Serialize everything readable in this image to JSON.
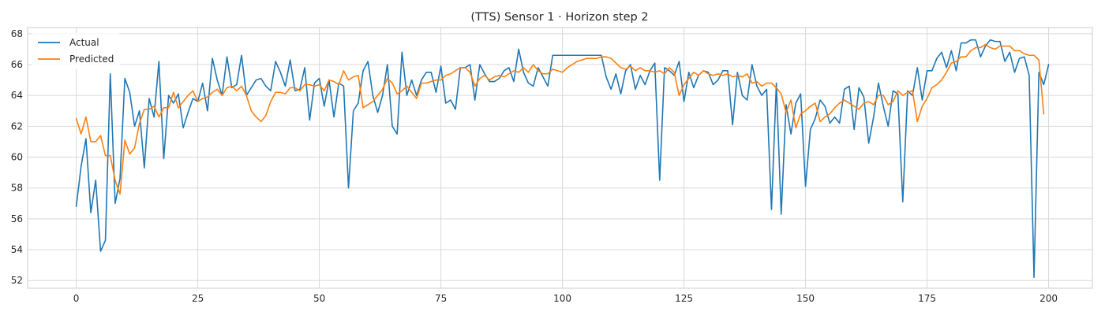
{
  "chart_data": {
    "type": "line",
    "title": "(TTS) Sensor 1 · Horizon step 2",
    "xlabel": "",
    "ylabel": "",
    "xlim": [
      -10,
      209
    ],
    "ylim": [
      51.5,
      68.4
    ],
    "xticks": [
      0,
      25,
      50,
      75,
      100,
      125,
      150,
      175,
      200
    ],
    "yticks": [
      52,
      54,
      56,
      58,
      60,
      62,
      64,
      66,
      68
    ],
    "grid": true,
    "legend": "top-left",
    "series": [
      {
        "name": "Actual",
        "color": "#1f77b4",
        "values": [
          56.8,
          59.4,
          61.2,
          56.4,
          58.5,
          53.9,
          54.6,
          65.4,
          57.0,
          58.6,
          65.1,
          64.2,
          62.0,
          63.0,
          59.3,
          63.8,
          62.6,
          66.2,
          59.9,
          64.0,
          63.5,
          64.1,
          61.9,
          62.9,
          63.8,
          63.6,
          64.8,
          63.0,
          66.4,
          65.0,
          64.0,
          66.5,
          64.5,
          64.7,
          66.6,
          64.0,
          64.5,
          65.0,
          65.1,
          64.6,
          64.3,
          66.2,
          65.5,
          64.6,
          66.3,
          64.3,
          64.4,
          65.8,
          62.4,
          64.8,
          65.1,
          63.3,
          65.0,
          62.6,
          64.8,
          64.6,
          58.0,
          63.0,
          63.5,
          65.6,
          66.2,
          64.0,
          62.9,
          64.0,
          66.0,
          62.0,
          61.5,
          66.8,
          64.0,
          65.0,
          64.0,
          65.0,
          65.5,
          65.5,
          64.2,
          65.9,
          63.5,
          63.7,
          63.1,
          65.8,
          65.8,
          66.0,
          63.7,
          66.0,
          65.4,
          64.9,
          64.9,
          65.1,
          65.6,
          65.8,
          64.9,
          67.0,
          65.5,
          64.8,
          64.6,
          65.8,
          65.2,
          64.6,
          66.6,
          66.6,
          66.6,
          66.6,
          66.6,
          66.6,
          66.6,
          66.6,
          66.6,
          66.6,
          66.6,
          65.2,
          64.4,
          65.4,
          64.1,
          65.6,
          66.0,
          64.4,
          65.3,
          64.7,
          65.6,
          66.1,
          58.5,
          65.8,
          65.6,
          65.3,
          66.2,
          63.6,
          65.5,
          64.5,
          65.3,
          65.6,
          65.5,
          64.7,
          65.0,
          65.6,
          65.6,
          62.1,
          65.5,
          64.0,
          63.7,
          66.0,
          64.6,
          64.0,
          64.4,
          56.6,
          64.8,
          56.3,
          63.4,
          61.5,
          63.5,
          64.1,
          58.1,
          61.8,
          62.5,
          63.7,
          63.3,
          62.2,
          62.6,
          62.2,
          64.4,
          64.6,
          61.8,
          64.5,
          63.9,
          60.9,
          62.6,
          64.8,
          63.3,
          62.0,
          64.3,
          64.1,
          57.1,
          64.3,
          64.0,
          65.8,
          63.7,
          65.6,
          65.6,
          66.4,
          66.8,
          65.8,
          66.9,
          65.6,
          67.4,
          67.4,
          67.6,
          67.6,
          66.5,
          67.2,
          67.6,
          67.5,
          67.5,
          66.2,
          66.8,
          65.5,
          66.4,
          66.5,
          65.3,
          52.2,
          65.5,
          64.7,
          66.0
        ]
      },
      {
        "name": "Predicted",
        "color": "#ff7f0e",
        "values": [
          62.5,
          61.5,
          62.6,
          61.0,
          61.0,
          61.4,
          60.1,
          60.1,
          58.5,
          57.6,
          61.1,
          60.2,
          60.6,
          62.2,
          63.1,
          63.1,
          63.3,
          62.6,
          63.2,
          63.2,
          64.2,
          63.2,
          63.6,
          64.0,
          64.3,
          63.6,
          63.8,
          63.9,
          64.2,
          64.4,
          64.0,
          64.5,
          64.6,
          64.3,
          64.6,
          64.0,
          63.0,
          62.6,
          62.3,
          62.7,
          63.6,
          64.2,
          64.2,
          64.1,
          64.5,
          64.5,
          64.3,
          64.7,
          64.7,
          64.6,
          64.7,
          64.3,
          65.0,
          64.9,
          64.7,
          65.6,
          65.0,
          65.2,
          65.3,
          63.2,
          63.4,
          63.6,
          64.0,
          64.4,
          65.1,
          64.8,
          64.1,
          64.3,
          64.6,
          64.2,
          63.8,
          64.8,
          64.8,
          64.9,
          65.0,
          65.0,
          65.3,
          65.4,
          65.6,
          65.8,
          65.8,
          65.5,
          64.6,
          65.1,
          65.3,
          65.0,
          65.2,
          65.3,
          65.2,
          65.4,
          65.6,
          65.5,
          65.8,
          65.5,
          66.0,
          65.6,
          65.4,
          65.4,
          65.7,
          65.6,
          65.5,
          65.8,
          66.0,
          66.2,
          66.3,
          66.4,
          66.4,
          66.4,
          66.5,
          66.5,
          66.4,
          66.1,
          65.8,
          65.7,
          65.9,
          65.6,
          65.8,
          65.6,
          65.6,
          65.5,
          65.6,
          65.4,
          65.8,
          65.5,
          64.0,
          64.7,
          65.1,
          65.5,
          65.3,
          65.6,
          65.4,
          65.3,
          65.4,
          65.3,
          65.4,
          65.2,
          65.3,
          65.2,
          65.4,
          64.8,
          64.9,
          64.6,
          64.8,
          64.8,
          64.5,
          64.1,
          62.9,
          63.7,
          61.9,
          62.8,
          63.0,
          63.3,
          63.5,
          62.3,
          62.6,
          62.8,
          63.2,
          63.5,
          63.7,
          63.5,
          63.3,
          63.1,
          63.5,
          63.6,
          63.4,
          64.0,
          64.0,
          63.4,
          63.6,
          64.3,
          64.0,
          64.2,
          64.3,
          62.3,
          63.3,
          63.8,
          64.5,
          64.7,
          65.0,
          65.5,
          66.1,
          66.2,
          66.5,
          66.5,
          66.9,
          67.1,
          67.1,
          67.3,
          67.1,
          67.0,
          67.2,
          67.2,
          67.2,
          66.9,
          66.9,
          66.7,
          66.6,
          66.6,
          66.3,
          62.8
        ]
      }
    ]
  }
}
